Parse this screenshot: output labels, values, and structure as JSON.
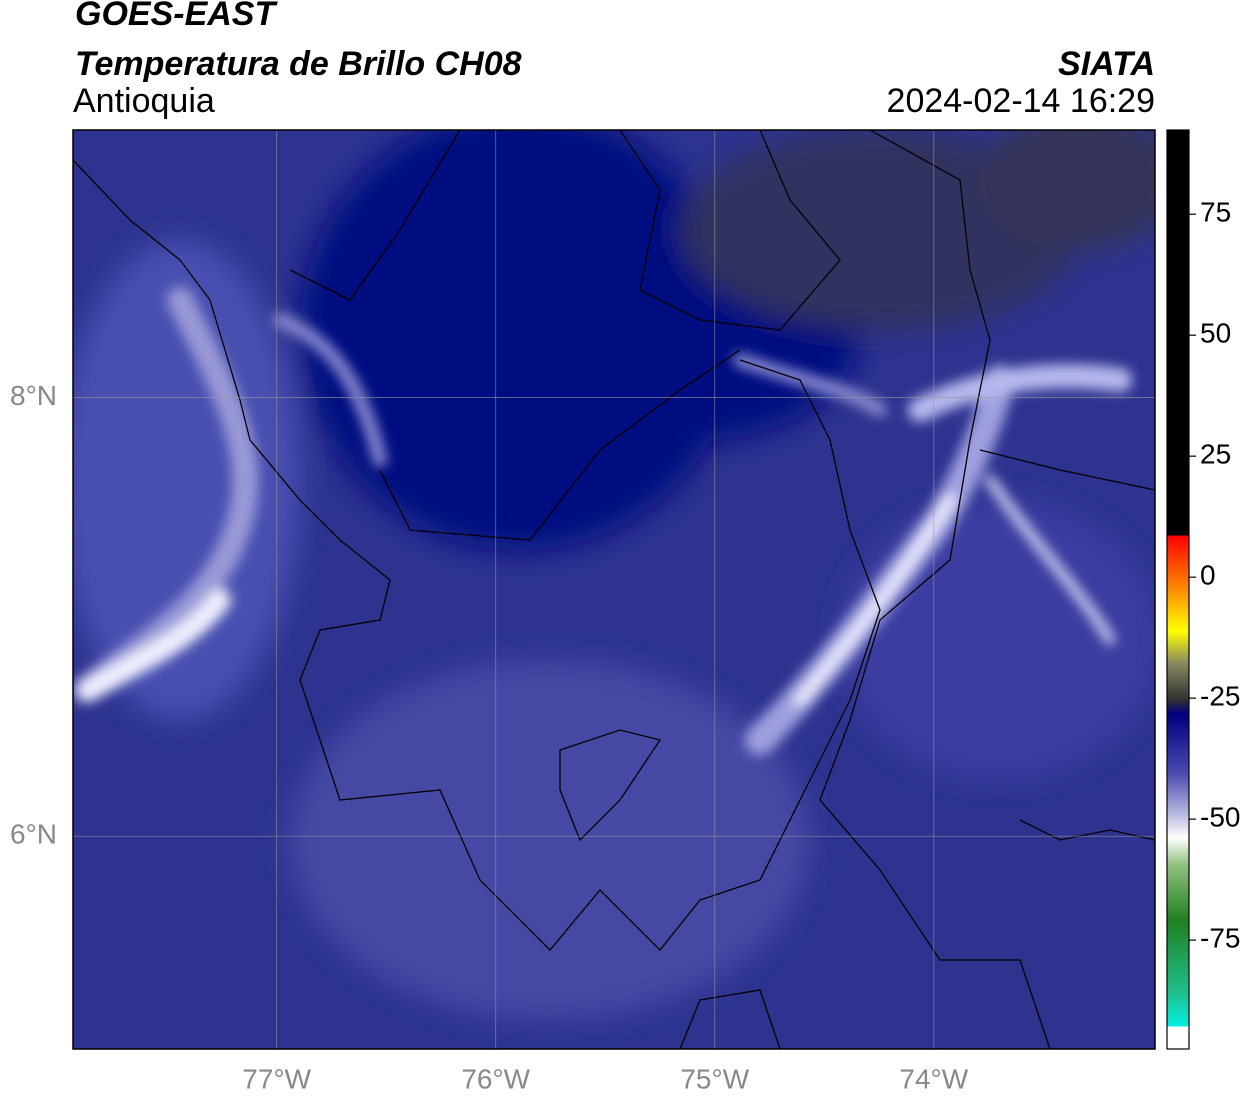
{
  "header": {
    "title": "GOES-EAST",
    "subtitle": "Temperatura de Brillo CH08",
    "region": "Antioquia",
    "source": "SIATA",
    "datetime": "2024-02-14 16:29"
  },
  "map": {
    "lonlim": [
      -77.93,
      -72.99
    ],
    "latlim": [
      5.03,
      9.22
    ],
    "lon_ticks": [
      {
        "value": -77,
        "label": "77°W"
      },
      {
        "value": -76,
        "label": "76°W"
      },
      {
        "value": -75,
        "label": "75°W"
      },
      {
        "value": -74,
        "label": "74°W"
      }
    ],
    "lat_ticks": [
      {
        "value": 8,
        "label": "8°N"
      },
      {
        "value": 6,
        "label": "6°N"
      }
    ]
  },
  "colorbar": {
    "lim": [
      -97.5,
      92.4
    ],
    "ticks": [
      75,
      50,
      25,
      0,
      -25,
      -50,
      -75
    ]
  }
}
